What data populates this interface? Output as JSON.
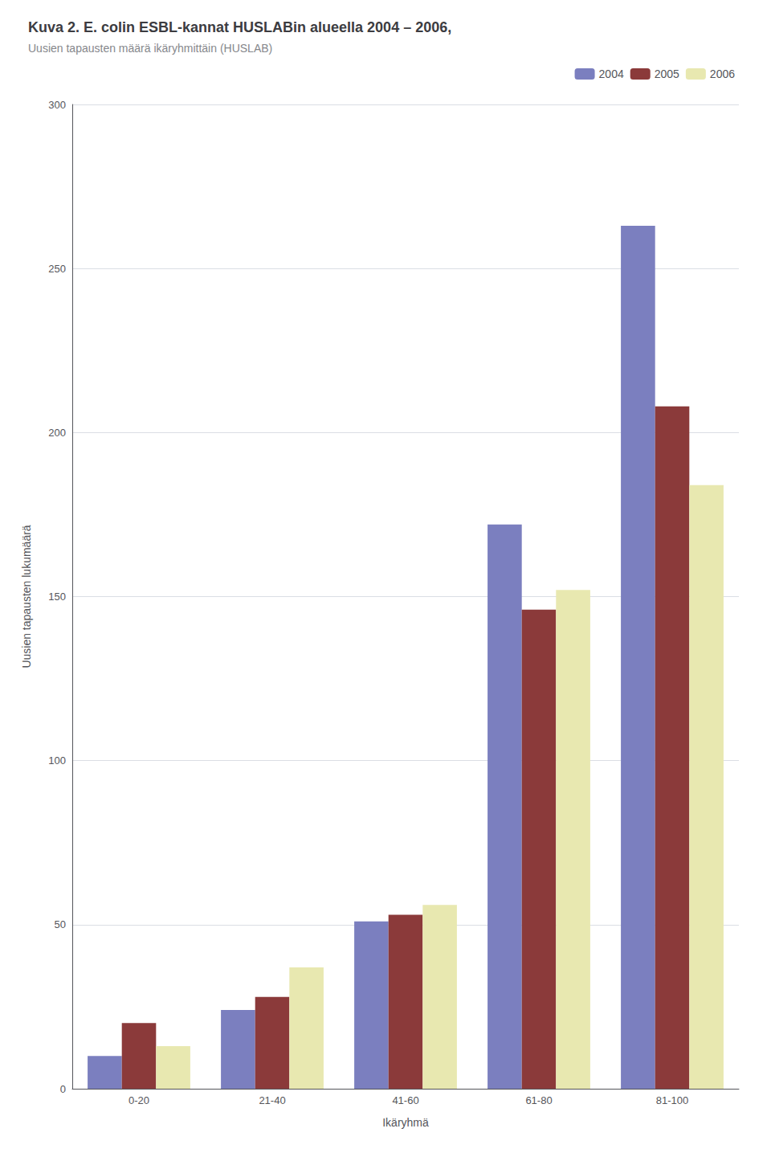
{
  "chart_data": {
    "type": "bar",
    "title": "Kuva 2. E. colin ESBL-kannat HUSLABin alueella 2004 – 2006,",
    "subtitle": "Uusien tapausten määrä ikäryhmittäin (HUSLAB)",
    "x_label": "Ikäryhmä",
    "y_label": "Uusien tapausten lukumäärä",
    "categories": [
      "0-20",
      "21-40",
      "41-60",
      "61-80",
      "81-100"
    ],
    "series": [
      {
        "name": "2004",
        "color": "#7b7fbf",
        "values": [
          10,
          24,
          51,
          172,
          263
        ]
      },
      {
        "name": "2005",
        "color": "#8b3a3a",
        "values": [
          20,
          28,
          53,
          146,
          208
        ]
      },
      {
        "name": "2006",
        "color": "#e8e8b0",
        "values": [
          13,
          37,
          56,
          152,
          184
        ]
      }
    ],
    "ylim": [
      0,
      300
    ],
    "yticks": [
      0,
      50,
      100,
      150,
      200,
      250,
      300
    ],
    "grid": true,
    "legend": "upper right"
  }
}
